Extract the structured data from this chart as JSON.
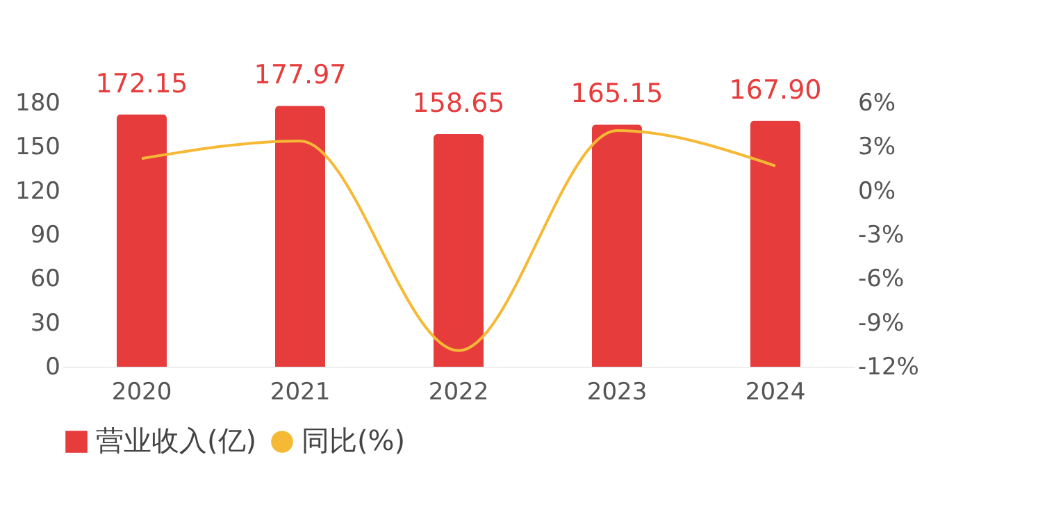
{
  "chart_data": {
    "type": "bar",
    "categories": [
      "2020",
      "2021",
      "2022",
      "2023",
      "2024"
    ],
    "series": [
      {
        "name": "营业收入(亿)",
        "color": "#e63c3c",
        "values": [
          172.15,
          177.97,
          158.65,
          165.15,
          167.9
        ],
        "value_labels": [
          "172.15",
          "177.97",
          "158.65",
          "165.15",
          "167.90"
        ]
      },
      {
        "name": "同比(%)",
        "type": "line",
        "axis": "y2",
        "color": "#f6b935",
        "values": [
          2.2,
          3.4,
          -10.9,
          4.1,
          1.7
        ]
      }
    ],
    "ylim": [
      0,
      180
    ],
    "yticks": [
      0,
      30,
      60,
      90,
      120,
      150,
      180
    ],
    "y2lim": [
      -12,
      6
    ],
    "y2ticks": [
      {
        "value": -12,
        "label": "-12%"
      },
      {
        "value": -9,
        "label": "-9%"
      },
      {
        "value": -6,
        "label": "-6%"
      },
      {
        "value": -3,
        "label": "-3%"
      },
      {
        "value": 0,
        "label": "0%"
      },
      {
        "value": 3,
        "label": "3%"
      },
      {
        "value": 6,
        "label": "6%"
      }
    ],
    "legend": "bottom",
    "grid": false
  }
}
